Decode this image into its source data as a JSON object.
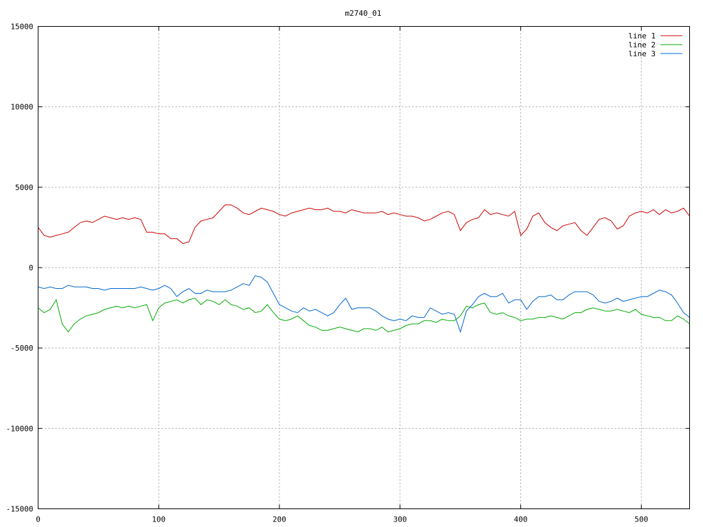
{
  "chart_data": {
    "type": "line",
    "title": "m2740_01",
    "xlabel": "",
    "ylabel": "",
    "xlim": [
      0,
      540
    ],
    "ylim": [
      -15000,
      15000
    ],
    "x_ticks": [
      0,
      100,
      200,
      300,
      400,
      500
    ],
    "y_ticks": [
      -15000,
      -10000,
      -5000,
      0,
      5000,
      10000,
      15000
    ],
    "grid": true,
    "legend_position": "top-right",
    "x": [
      0,
      5,
      10,
      15,
      20,
      25,
      30,
      35,
      40,
      45,
      50,
      55,
      60,
      65,
      70,
      75,
      80,
      85,
      90,
      95,
      100,
      105,
      110,
      115,
      120,
      125,
      130,
      135,
      140,
      145,
      150,
      155,
      160,
      165,
      170,
      175,
      180,
      185,
      190,
      195,
      200,
      205,
      210,
      215,
      220,
      225,
      230,
      235,
      240,
      245,
      250,
      255,
      260,
      265,
      270,
      275,
      280,
      285,
      290,
      295,
      300,
      305,
      310,
      315,
      320,
      325,
      330,
      335,
      340,
      345,
      350,
      355,
      360,
      365,
      370,
      375,
      380,
      385,
      390,
      395,
      400,
      405,
      410,
      415,
      420,
      425,
      430,
      435,
      440,
      445,
      450,
      455,
      460,
      465,
      470,
      475,
      480,
      485,
      490,
      495,
      500,
      505,
      510,
      515,
      520,
      525,
      530,
      535,
      540
    ],
    "series": [
      {
        "name": "line 1",
        "color": "#cc0000",
        "values": [
          2500,
          2000,
          1900,
          2000,
          2100,
          2200,
          2500,
          2800,
          2900,
          2800,
          3000,
          3200,
          3100,
          3000,
          3100,
          3000,
          3100,
          3000,
          2200,
          2200,
          2100,
          2100,
          1800,
          1800,
          1500,
          1600,
          2500,
          2900,
          3000,
          3100,
          3500,
          3900,
          3900,
          3700,
          3400,
          3300,
          3500,
          3700,
          3600,
          3500,
          3300,
          3200,
          3400,
          3500,
          3600,
          3700,
          3600,
          3600,
          3700,
          3500,
          3500,
          3400,
          3600,
          3500,
          3400,
          3400,
          3400,
          3500,
          3300,
          3400,
          3300,
          3200,
          3200,
          3100,
          2900,
          3000,
          3200,
          3400,
          3500,
          3300,
          2300,
          2800,
          3000,
          3100,
          3600,
          3300,
          3400,
          3300,
          3200,
          3500,
          2000,
          2400,
          3200,
          3400,
          2800,
          2500,
          2300,
          2600,
          2700,
          2800,
          2300,
          2000,
          2500,
          3000,
          3100,
          2900,
          2400,
          2600,
          3200,
          3400,
          3500,
          3400,
          3600,
          3300,
          3600,
          3400,
          3500,
          3700,
          3200
        ]
      },
      {
        "name": "line 2",
        "color": "#00aa00",
        "values": [
          -2500,
          -2800,
          -2600,
          -2000,
          -3500,
          -4000,
          -3500,
          -3200,
          -3000,
          -2900,
          -2800,
          -2600,
          -2500,
          -2400,
          -2500,
          -2400,
          -2500,
          -2400,
          -2300,
          -3300,
          -2500,
          -2200,
          -2100,
          -2000,
          -2200,
          -2000,
          -1900,
          -2300,
          -2000,
          -2100,
          -2300,
          -2000,
          -2300,
          -2400,
          -2600,
          -2500,
          -2800,
          -2700,
          -2300,
          -2800,
          -3200,
          -3300,
          -3200,
          -3000,
          -3300,
          -3600,
          -3700,
          -3900,
          -3900,
          -3800,
          -3700,
          -3800,
          -3900,
          -4000,
          -3800,
          -3800,
          -3900,
          -3700,
          -4000,
          -3900,
          -3800,
          -3600,
          -3500,
          -3500,
          -3300,
          -3300,
          -3400,
          -3200,
          -3300,
          -3300,
          -3000,
          -2400,
          -2500,
          -2300,
          -2200,
          -2800,
          -2900,
          -2800,
          -3000,
          -3100,
          -3300,
          -3200,
          -3200,
          -3100,
          -3100,
          -3000,
          -3100,
          -3200,
          -3000,
          -2800,
          -2800,
          -2600,
          -2500,
          -2600,
          -2700,
          -2700,
          -2600,
          -2700,
          -2800,
          -2600,
          -2900,
          -3000,
          -3100,
          -3100,
          -3300,
          -3300,
          -3000,
          -3200,
          -3500
        ]
      },
      {
        "name": "line 3",
        "color": "#0066cc",
        "values": [
          -1200,
          -1300,
          -1200,
          -1300,
          -1300,
          -1100,
          -1200,
          -1200,
          -1200,
          -1300,
          -1300,
          -1400,
          -1300,
          -1300,
          -1300,
          -1300,
          -1300,
          -1200,
          -1300,
          -1400,
          -1300,
          -1100,
          -1300,
          -1800,
          -1500,
          -1300,
          -1600,
          -1600,
          -1400,
          -1500,
          -1500,
          -1500,
          -1400,
          -1200,
          -1000,
          -1100,
          -500,
          -600,
          -900,
          -1600,
          -2300,
          -2500,
          -2700,
          -2800,
          -2500,
          -2700,
          -2600,
          -2800,
          -3000,
          -2800,
          -2300,
          -1900,
          -2600,
          -2500,
          -2500,
          -2500,
          -2700,
          -3000,
          -3200,
          -3300,
          -3200,
          -3300,
          -3000,
          -3100,
          -3100,
          -2500,
          -2700,
          -2900,
          -2800,
          -2900,
          -4000,
          -2700,
          -2300,
          -1800,
          -1600,
          -1800,
          -1800,
          -1600,
          -2200,
          -2000,
          -2000,
          -2600,
          -2100,
          -1800,
          -1800,
          -1700,
          -2000,
          -2000,
          -1700,
          -1500,
          -1500,
          -1500,
          -1700,
          -2100,
          -2200,
          -2100,
          -1900,
          -2100,
          -2000,
          -1900,
          -1800,
          -1800,
          -1600,
          -1400,
          -1500,
          -1700,
          -2200,
          -2800,
          -3100
        ]
      }
    ]
  }
}
